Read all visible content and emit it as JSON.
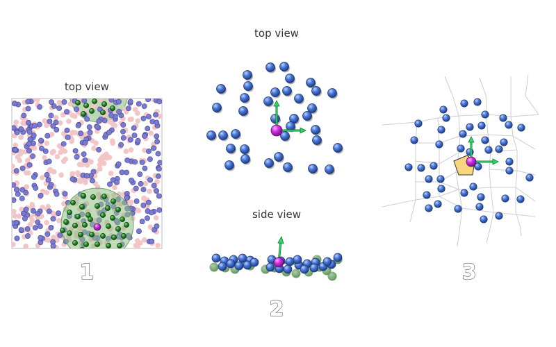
{
  "panels": [
    {
      "number": "1",
      "label": "top view"
    },
    {
      "number": "2",
      "labels": [
        "top view",
        "side view"
      ]
    },
    {
      "number": "3"
    }
  ],
  "colors": {
    "center_atom": "#cc33dd",
    "neighbor_atom": "#3a6bd0",
    "neighbor_atom_dark": "#1e3f8a",
    "selected_atom": "#1f7a1f",
    "small_blue_atom": "#7a7ad0",
    "small_pink_atom": "#f2c6c6",
    "cutoff_disk": "#8fbf84",
    "ghost_atom": "#6f9e6a",
    "axis_arrow": "#22cc55",
    "voronoi_cell": "#f7d77e",
    "voronoi_edge": "#cccccc",
    "frame": "#bbbbbb"
  },
  "icons": [
    "coordinate-axes-icon"
  ]
}
